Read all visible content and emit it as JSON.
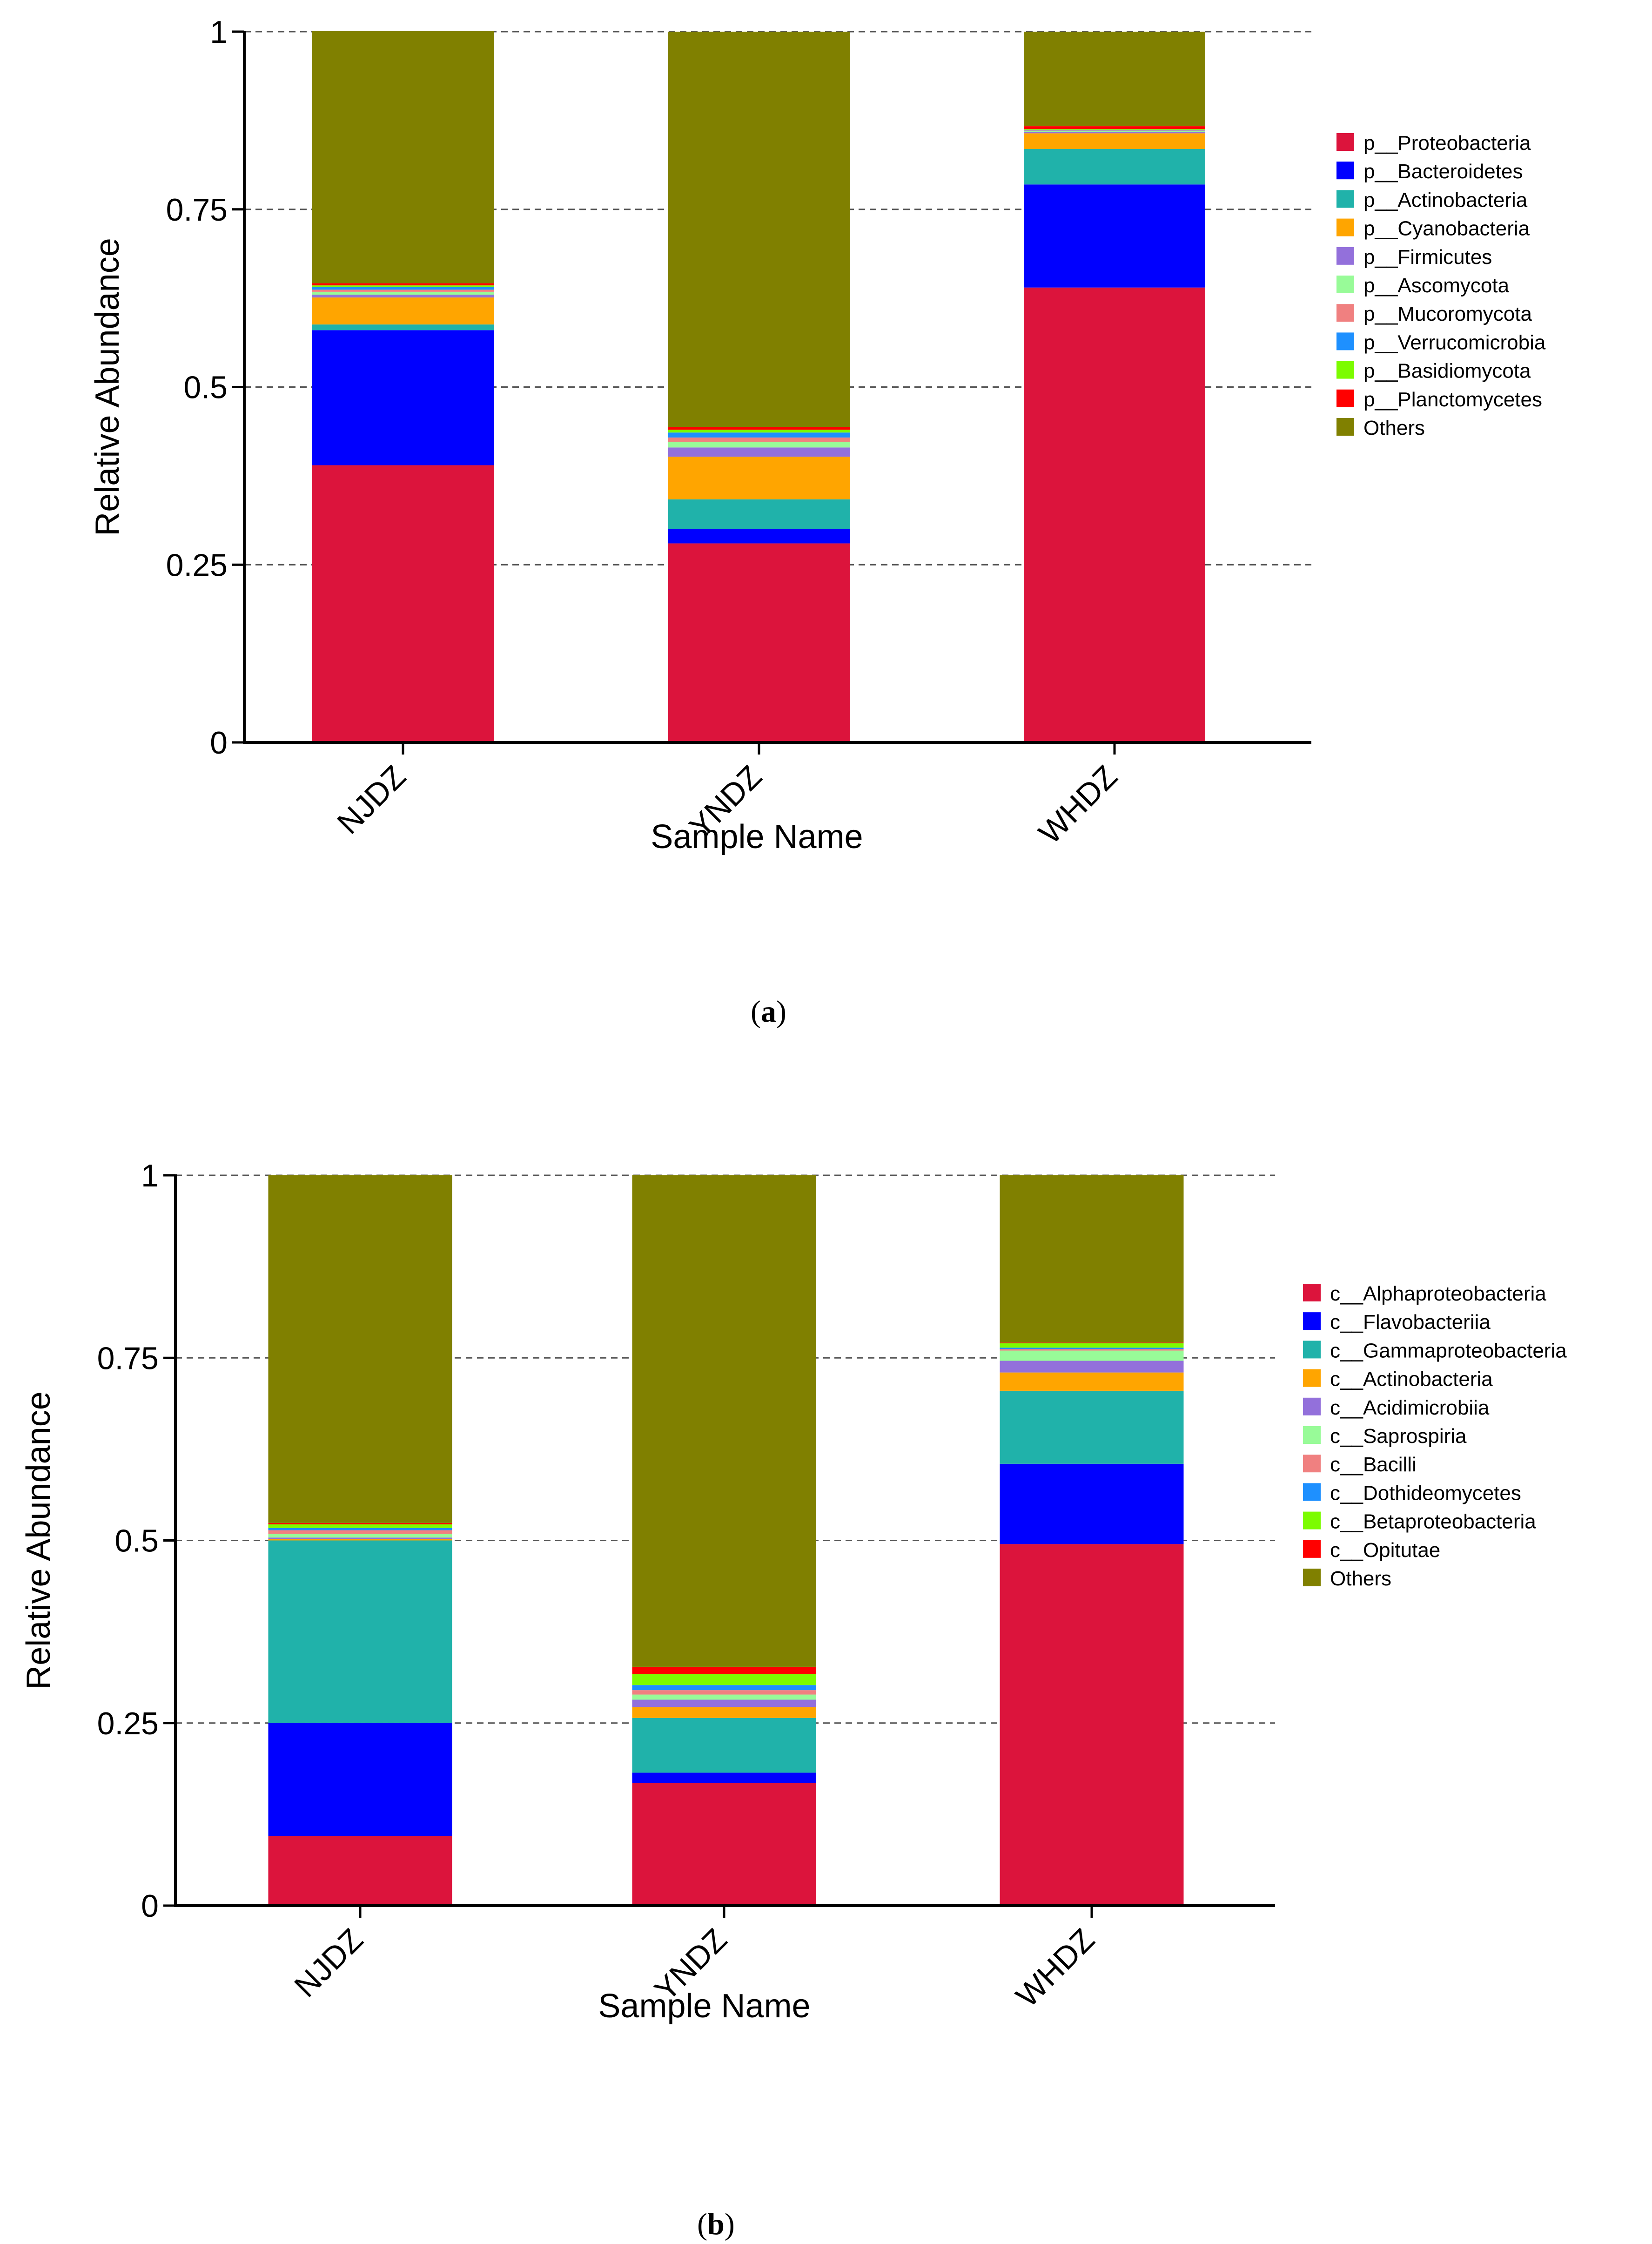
{
  "chart_data": [
    {
      "type": "bar",
      "stacked": true,
      "panel_label": "a",
      "xlabel": "Sample Name",
      "ylabel": "Relative Abundance",
      "ylim": [
        0,
        1
      ],
      "yticks": [
        "0",
        "0.25",
        "0.5",
        "0.75",
        "1"
      ],
      "grid": "horizontal dashed",
      "legend_position": "right",
      "categories": [
        "NJDZ",
        "YNDZ",
        "WHDZ"
      ],
      "series": [
        {
          "name": "p__Proteobacteria",
          "color": "#DC143C",
          "values": [
            0.39,
            0.28,
            0.64
          ]
        },
        {
          "name": "p__Bacteroidetes",
          "color": "#0000FF",
          "values": [
            0.19,
            0.02,
            0.145
          ]
        },
        {
          "name": "p__Actinobacteria",
          "color": "#20B2AA",
          "values": [
            0.008,
            0.042,
            0.05
          ]
        },
        {
          "name": "p__Cyanobacteria",
          "color": "#FFA500",
          "values": [
            0.038,
            0.06,
            0.022
          ]
        },
        {
          "name": "p__Firmicutes",
          "color": "#9370DB",
          "values": [
            0.004,
            0.013,
            0.002
          ]
        },
        {
          "name": "p__Ascomycota",
          "color": "#98FB98",
          "values": [
            0.004,
            0.008,
            0.001
          ]
        },
        {
          "name": "p__Mucoromycota",
          "color": "#F08080",
          "values": [
            0.003,
            0.006,
            0.001
          ]
        },
        {
          "name": "p__Verrucomicrobia",
          "color": "#1E90FF",
          "values": [
            0.004,
            0.007,
            0.001
          ]
        },
        {
          "name": "p__Basidiomycota",
          "color": "#7CFC00",
          "values": [
            0.002,
            0.004,
            0.001
          ]
        },
        {
          "name": "p__Planctomycetes",
          "color": "#FF0000",
          "values": [
            0.003,
            0.004,
            0.004
          ]
        },
        {
          "name": "Others",
          "color": "#808000",
          "values": [
            0.355,
            0.556,
            0.133
          ]
        }
      ]
    },
    {
      "type": "bar",
      "stacked": true,
      "panel_label": "b",
      "xlabel": "Sample Name",
      "ylabel": "Relative Abundance",
      "ylim": [
        0,
        1
      ],
      "yticks": [
        "0",
        "0.25",
        "0.5",
        "0.75",
        "1"
      ],
      "grid": "horizontal dashed",
      "legend_position": "right",
      "categories": [
        "NJDZ",
        "YNDZ",
        "WHDZ"
      ],
      "series": [
        {
          "name": "c__Alphaproteobacteria",
          "color": "#DC143C",
          "values": [
            0.095,
            0.168,
            0.495
          ]
        },
        {
          "name": "c__Flavobacteriia",
          "color": "#0000FF",
          "values": [
            0.155,
            0.014,
            0.11
          ]
        },
        {
          "name": "c__Gammaproteobacteria",
          "color": "#20B2AA",
          "values": [
            0.25,
            0.075,
            0.1
          ]
        },
        {
          "name": "c__Actinobacteria",
          "color": "#FFA500",
          "values": [
            0.002,
            0.015,
            0.025
          ]
        },
        {
          "name": "c__Acidimicrobiia",
          "color": "#9370DB",
          "values": [
            0.002,
            0.01,
            0.016
          ]
        },
        {
          "name": "c__Saprospiria",
          "color": "#98FB98",
          "values": [
            0.005,
            0.007,
            0.014
          ]
        },
        {
          "name": "c__Bacilli",
          "color": "#F08080",
          "values": [
            0.005,
            0.006,
            0.002
          ]
        },
        {
          "name": "c__Dothideomycetes",
          "color": "#1E90FF",
          "values": [
            0.003,
            0.007,
            0.002
          ]
        },
        {
          "name": "c__Betaproteobacteria",
          "color": "#7CFC00",
          "values": [
            0.005,
            0.015,
            0.006
          ]
        },
        {
          "name": "c__Opitutae",
          "color": "#FF0000",
          "values": [
            0.002,
            0.01,
            0.001
          ]
        },
        {
          "name": "Others",
          "color": "#808000",
          "values": [
            0.476,
            0.673,
            0.229
          ]
        }
      ]
    }
  ]
}
